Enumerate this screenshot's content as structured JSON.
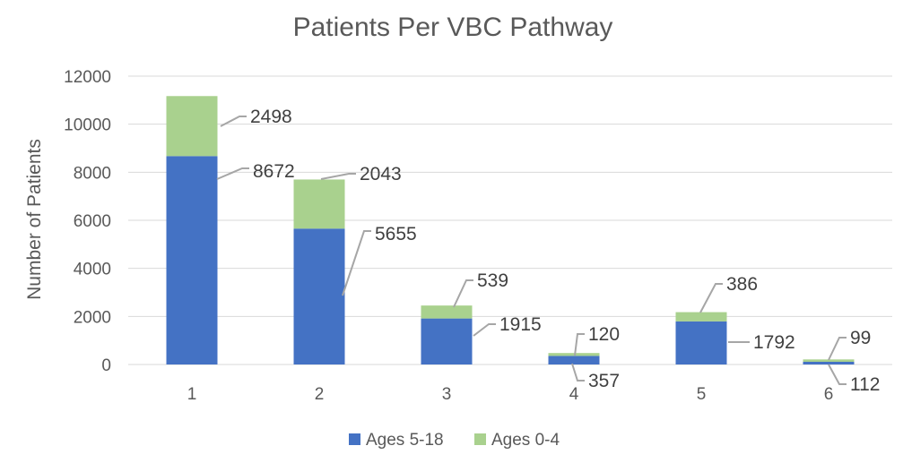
{
  "chart_data": {
    "type": "bar",
    "stacked": true,
    "title": "Patients Per VBC Pathway",
    "xlabel": "",
    "ylabel": "Number of Patients",
    "categories": [
      "1",
      "2",
      "3",
      "4",
      "5",
      "6"
    ],
    "ylim": [
      0,
      12000
    ],
    "yticks": [
      0,
      2000,
      4000,
      6000,
      8000,
      10000,
      12000
    ],
    "grid": true,
    "legend_position": "bottom",
    "series": [
      {
        "name": "Ages 5-18",
        "color": "#4472c4",
        "values": [
          8672,
          5655,
          1915,
          357,
          1792,
          112
        ]
      },
      {
        "name": "Ages 0-4",
        "color": "#a9d18e",
        "values": [
          2498,
          2043,
          539,
          120,
          386,
          99
        ]
      }
    ]
  }
}
